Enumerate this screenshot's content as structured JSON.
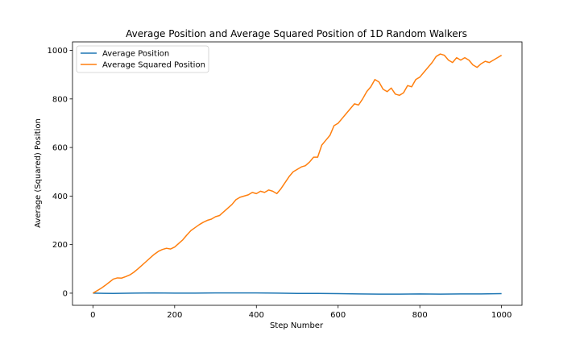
{
  "chart_data": {
    "type": "line",
    "title": "Average Position and Average Squared Position of 1D Random Walkers",
    "xlabel": "Step Number",
    "ylabel": "Average (Squared) Position",
    "xlim": [
      -50,
      1050
    ],
    "ylim": [
      -50,
      1035
    ],
    "xticks": [
      0,
      200,
      400,
      600,
      800,
      1000
    ],
    "yticks": [
      0,
      200,
      400,
      600,
      800,
      1000
    ],
    "xtick_labels": [
      "0",
      "200",
      "400",
      "600",
      "800",
      "1000"
    ],
    "ytick_labels": [
      "0",
      "200",
      "400",
      "600",
      "800",
      "1000"
    ],
    "grid": false,
    "legend_position": "top-left",
    "series": [
      {
        "name": "Average Position",
        "color": "#1f77b4",
        "x": [
          0,
          50,
          100,
          150,
          200,
          250,
          300,
          350,
          400,
          450,
          500,
          550,
          600,
          650,
          700,
          750,
          800,
          850,
          900,
          950,
          1000
        ],
        "y": [
          0,
          -1,
          0,
          1,
          0,
          0,
          1,
          1,
          1,
          0,
          -1,
          -1,
          -2,
          -3,
          -4,
          -4,
          -3,
          -4,
          -3,
          -3,
          -2
        ]
      },
      {
        "name": "Average Squared Position",
        "color": "#ff7f0e",
        "x": [
          0,
          10,
          20,
          30,
          40,
          50,
          60,
          70,
          80,
          90,
          100,
          110,
          120,
          130,
          140,
          150,
          160,
          170,
          180,
          190,
          200,
          210,
          220,
          230,
          240,
          250,
          260,
          270,
          280,
          290,
          300,
          310,
          320,
          330,
          340,
          350,
          360,
          370,
          380,
          390,
          400,
          410,
          420,
          430,
          440,
          450,
          460,
          470,
          480,
          490,
          500,
          510,
          520,
          530,
          540,
          550,
          560,
          570,
          580,
          590,
          600,
          610,
          620,
          630,
          640,
          650,
          660,
          670,
          680,
          690,
          700,
          710,
          720,
          730,
          740,
          750,
          760,
          770,
          780,
          790,
          800,
          810,
          820,
          830,
          840,
          850,
          860,
          870,
          880,
          890,
          900,
          910,
          920,
          930,
          940,
          950,
          960,
          970,
          980,
          990,
          1000
        ],
        "y": [
          0,
          10,
          20,
          32,
          45,
          58,
          63,
          62,
          68,
          75,
          86,
          100,
          115,
          130,
          145,
          160,
          172,
          180,
          185,
          182,
          190,
          205,
          220,
          240,
          258,
          270,
          282,
          292,
          300,
          305,
          315,
          320,
          335,
          350,
          365,
          385,
          395,
          400,
          405,
          415,
          410,
          420,
          415,
          425,
          420,
          410,
          430,
          455,
          480,
          500,
          510,
          520,
          525,
          540,
          560,
          560,
          610,
          630,
          650,
          690,
          700,
          720,
          740,
          760,
          780,
          775,
          800,
          830,
          850,
          880,
          870,
          840,
          830,
          845,
          820,
          815,
          825,
          855,
          850,
          880,
          890,
          910,
          930,
          950,
          975,
          985,
          980,
          960,
          950,
          970,
          960,
          970,
          960,
          940,
          930,
          945,
          955,
          950,
          960,
          970,
          980
        ]
      }
    ]
  }
}
